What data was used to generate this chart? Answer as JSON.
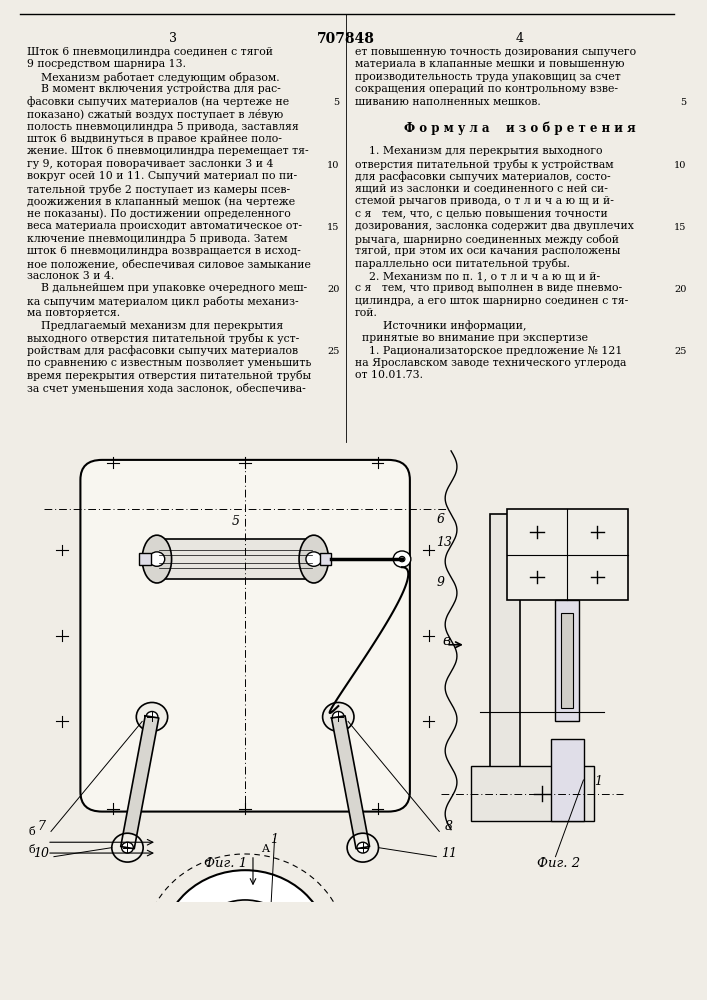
{
  "page_width": 7.07,
  "page_height": 10.0,
  "bg_color": "#f0ede6",
  "header_page_numbers": [
    "3",
    "707848",
    "4"
  ],
  "left_col_lines": [
    "Шток 6 пневмоцилиндра соединен с тягой",
    "9 посредством шарнира 13.",
    "    Механизм работает следующим образом.",
    "    В момент включения устройства для рас-",
    "фасовки сыпучих материалов (на чертеже не",
    "показано) сжатый воздух поступает в ле́вую",
    "полость пневмоцилиндра 5 привода, заставляя",
    "шток 6 выдвинуться в правое крайнее поло-",
    "жение. Шток 6 пневмоцилиндра перемещает тя-",
    "гу 9, которая поворачивает заслонки 3 и 4",
    "вокруг осей 10 и 11. Сыпучий материал по пи-",
    "тательной трубе 2 поступает из камеры псев-",
    "доожижения в клапанный мешок (на чертеже",
    "не показаны). По достижении определенного",
    "веса материала происходит автоматическое от-",
    "ключение пневмоцилиндра 5 привода. Затем",
    "шток 6 пневмоцилиндра возвращается в исход-",
    "ное положение, обеспечивая силовое замыкание",
    "заслонок 3 и 4.",
    "    В дальнейшем при упаковке очередного меш-",
    "ка сыпучим материалом цикл работы механиз-",
    "ма повторяется.",
    "    Предлагаемый механизм для перекрытия",
    "выходного отверстия питательной трубы к уст-",
    "ройствам для расфасовки сыпучих материалов",
    "по сравнению с известным позволяет уменьшить",
    "время перекрытия отверстия питательной трубы",
    "за счет уменьшения хода заслонок, обеспечива-"
  ],
  "right_col_lines": [
    "ет повышенную точность дозирования сыпучего",
    "материала в клапанные мешки и повышенную",
    "производительность труда упаковщиц за счет",
    "сокращения операций по контрольному взве-",
    "шиванию наполненных мешков.",
    "",
    "Ф о р м у л а    и з о б р е т е н и я",
    "",
    "    1. Механизм для перекрытия выходного",
    "отверстия питательной трубы к устройствам",
    "для расфасовки сыпучих материалов, состо-",
    "ящий из заслонки и соединенного с ней си-",
    "стемой рычагов привода, о т л и ч а ю щ и й-",
    "с я   тем, что, с целью повышения точности",
    "дозирования, заслонка содержит два двуплечих",
    "рычага, шарнирно соединенных между собой",
    "тягой, при этом их оси качания расположены",
    "параллельно оси питательной трубы.",
    "    2. Механизм по п. 1, о т л и ч а ю щ и й-",
    "с я   тем, что привод выполнен в виде пневмо-",
    "цилиндра, а его шток шарнирно соединен с тя-",
    "гой.",
    "        Источники информации,",
    "  принятые во внимание при экспертизе",
    "    1. Рационализаторское предложение № 121",
    "на Ярославском заводе технического углерода",
    "от 10.01.73."
  ],
  "fig1_label": "Фиг. 1",
  "fig2_label": "Фиг. 2"
}
